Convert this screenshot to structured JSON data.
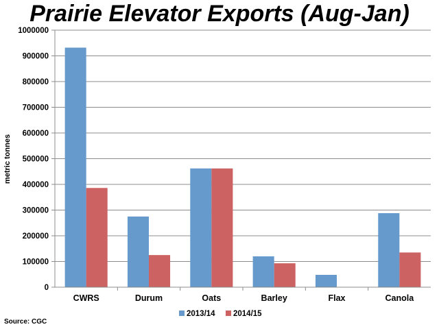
{
  "chart_data": {
    "type": "bar",
    "title": "Prairie Elevator Exports (Aug-Jan)",
    "xlabel": "",
    "ylabel": "metric tonnes",
    "ylim": [
      0,
      1000000
    ],
    "yticks": [
      "0",
      "100000",
      "200000",
      "300000",
      "400000",
      "500000",
      "600000",
      "700000",
      "800000",
      "900000",
      "1000000"
    ],
    "categories": [
      "CWRS",
      "Durum",
      "Oats",
      "Barley",
      "Flax",
      "Canola"
    ],
    "series": [
      {
        "name": "2013/14",
        "color": "#6699cc",
        "values": [
          932000,
          275000,
          462000,
          120000,
          48000,
          288000
        ]
      },
      {
        "name": "2014/15",
        "color": "#cc6262",
        "values": [
          386000,
          125000,
          462000,
          93000,
          0,
          135000
        ]
      }
    ],
    "grid": true,
    "legend_position": "bottom",
    "source": "Source: CGC"
  }
}
